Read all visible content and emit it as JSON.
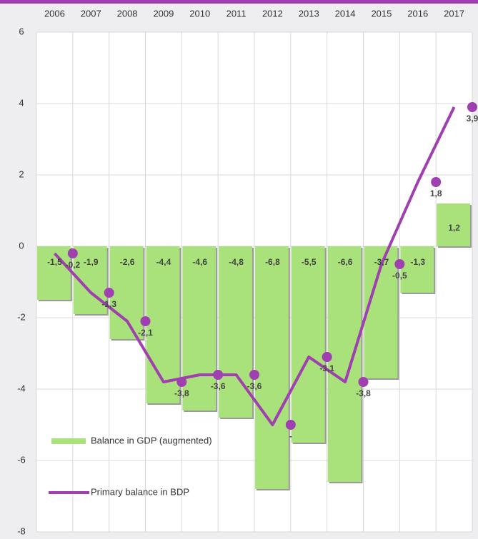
{
  "chart_data": {
    "type": "bar",
    "categories": [
      "2006",
      "2007",
      "2008",
      "2009",
      "2010",
      "2011",
      "2012",
      "2013",
      "2014",
      "2015",
      "2016",
      "2017"
    ],
    "series": [
      {
        "name": "Balance in GDP (augmented)",
        "type": "bar",
        "color": "#a9e27a",
        "values": [
          -1.5,
          -1.9,
          -2.6,
          -4.4,
          -4.6,
          -4.8,
          -6.8,
          -5.5,
          -6.6,
          -3.7,
          -1.3,
          1.2
        ],
        "value_labels": [
          "-1,5",
          "-1,9",
          "-2,6",
          "-4,4",
          "-4,6",
          "-4,8",
          "-6,8",
          "-5,5",
          "-6,6",
          "-3,7",
          "-1,3",
          "1,2"
        ]
      },
      {
        "name": "Primary balance in BDP",
        "type": "line",
        "color": "#a040b0",
        "values": [
          -0.2,
          -1.3,
          -2.1,
          -3.8,
          -3.6,
          -3.6,
          -5.0,
          -3.1,
          -3.8,
          -0.5,
          1.8,
          3.9
        ],
        "value_labels": [
          "-0,2",
          "-1,3",
          "-2,1",
          "-3,8",
          "-3,6",
          "-3,6",
          "-",
          "-3,1",
          "-3,8",
          "-0,5",
          "1,8",
          "3,9"
        ]
      }
    ],
    "ylim": [
      -8,
      6
    ],
    "yticks": [
      -8,
      -6,
      -4,
      -2,
      0,
      2,
      4,
      6
    ],
    "grid": true
  }
}
